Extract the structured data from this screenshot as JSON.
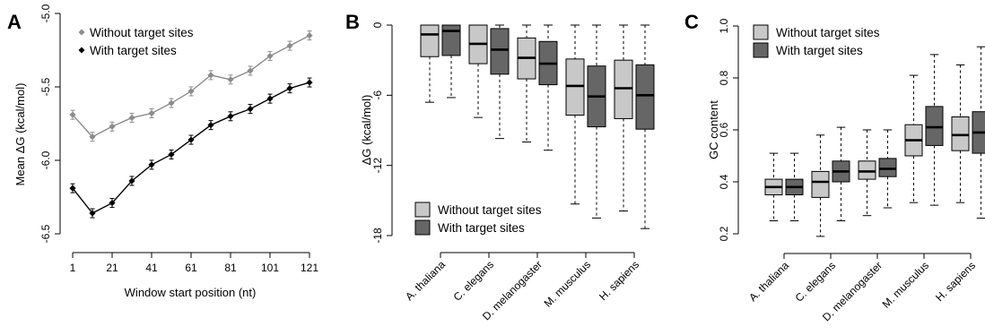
{
  "panels": {
    "a": {
      "letter": "A"
    },
    "b": {
      "letter": "B"
    },
    "c": {
      "letter": "C"
    }
  },
  "chart_data": [
    {
      "type": "line",
      "xlabel": "Window start position (nt)",
      "ylabel": "Mean ΔG (kcal/mol)",
      "xlim": [
        1,
        121
      ],
      "ylim": [
        -6.5,
        -5.0
      ],
      "x_ticks": [
        1,
        21,
        41,
        61,
        81,
        101,
        121
      ],
      "x_tick_labels": [
        "1",
        "21",
        "41",
        "61",
        "81",
        "101",
        "121"
      ],
      "y_ticks": [
        -6.5,
        -6.0,
        -5.5,
        -5.0
      ],
      "y_tick_labels": [
        "-6.5",
        "-6.0",
        "-5.5",
        "-5.0"
      ],
      "legend_position": "top-left",
      "error_bars": true,
      "x": [
        1,
        11,
        21,
        31,
        41,
        51,
        61,
        71,
        81,
        91,
        101,
        111,
        121
      ],
      "series": [
        {
          "name": "Without target sites",
          "color": "#8c8c8c",
          "values": [
            -5.69,
            -5.84,
            -5.77,
            -5.71,
            -5.68,
            -5.61,
            -5.53,
            -5.42,
            -5.45,
            -5.39,
            -5.29,
            -5.22,
            -5.15
          ]
        },
        {
          "name": "With target sites",
          "color": "#000000",
          "values": [
            -6.19,
            -6.36,
            -6.29,
            -6.14,
            -6.03,
            -5.96,
            -5.86,
            -5.76,
            -5.7,
            -5.65,
            -5.58,
            -5.51,
            -5.47
          ]
        }
      ]
    },
    {
      "type": "boxplot",
      "ylabel": "ΔG (kcal/mol)",
      "ylim": [
        -18,
        0
      ],
      "y_ticks": [
        0,
        -6,
        -12,
        -18
      ],
      "y_tick_labels": [
        "0",
        "-6",
        "-12",
        "-18"
      ],
      "categories": [
        "A. thaliana",
        "C. elegans",
        "D. melanogaster",
        "M. musculus",
        "H. sapiens"
      ],
      "legend_position": "bottom-left",
      "series": [
        {
          "name": "Without target sites",
          "color": "#c8c8c8",
          "boxes": [
            {
              "min": -6.6,
              "q1": -2.7,
              "median": -0.8,
              "q3": 0,
              "max": 0
            },
            {
              "min": -7.9,
              "q1": -3.3,
              "median": -1.6,
              "q3": 0,
              "max": 0
            },
            {
              "min": -10.0,
              "q1": -4.6,
              "median": -2.8,
              "q3": -1.1,
              "max": 0
            },
            {
              "min": -15.3,
              "q1": -7.7,
              "median": -5.2,
              "q3": -2.9,
              "max": 0
            },
            {
              "min": -15.9,
              "q1": -8.0,
              "median": -5.4,
              "q3": -3.0,
              "max": 0
            }
          ]
        },
        {
          "name": "With target sites",
          "color": "#666666",
          "boxes": [
            {
              "min": -6.2,
              "q1": -2.6,
              "median": -0.5,
              "q3": 0,
              "max": 0
            },
            {
              "min": -9.7,
              "q1": -4.2,
              "median": -2.1,
              "q3": -0.3,
              "max": 0
            },
            {
              "min": -10.7,
              "q1": -5.1,
              "median": -3.3,
              "q3": -1.4,
              "max": 0
            },
            {
              "min": -16.5,
              "q1": -8.7,
              "median": -6.1,
              "q3": -3.5,
              "max": 0
            },
            {
              "min": -17.4,
              "q1": -8.9,
              "median": -6.0,
              "q3": -3.4,
              "max": 0
            }
          ]
        }
      ]
    },
    {
      "type": "boxplot",
      "ylabel": "GC content",
      "ylim": [
        0.2,
        1.0
      ],
      "y_ticks": [
        0.2,
        0.4,
        0.6,
        0.8,
        1.0
      ],
      "y_tick_labels": [
        "0.2",
        "0.4",
        "0.6",
        "0.8",
        "1.0"
      ],
      "categories": [
        "A. thaliana",
        "C. elegans",
        "D. melanogaster",
        "M. musculus",
        "H. sapiens"
      ],
      "legend_position": "top-left",
      "series": [
        {
          "name": "Without target sites",
          "color": "#c8c8c8",
          "boxes": [
            {
              "min": 0.25,
              "q1": 0.35,
              "median": 0.38,
              "q3": 0.41,
              "max": 0.51
            },
            {
              "min": 0.19,
              "q1": 0.34,
              "median": 0.4,
              "q3": 0.44,
              "max": 0.58
            },
            {
              "min": 0.27,
              "q1": 0.41,
              "median": 0.44,
              "q3": 0.48,
              "max": 0.6
            },
            {
              "min": 0.32,
              "q1": 0.5,
              "median": 0.56,
              "q3": 0.62,
              "max": 0.81
            },
            {
              "min": 0.32,
              "q1": 0.52,
              "median": 0.58,
              "q3": 0.65,
              "max": 0.85
            }
          ]
        },
        {
          "name": "With target sites",
          "color": "#666666",
          "boxes": [
            {
              "min": 0.25,
              "q1": 0.35,
              "median": 0.38,
              "q3": 0.41,
              "max": 0.51
            },
            {
              "min": 0.25,
              "q1": 0.4,
              "median": 0.44,
              "q3": 0.48,
              "max": 0.61
            },
            {
              "min": 0.3,
              "q1": 0.42,
              "median": 0.45,
              "q3": 0.49,
              "max": 0.6
            },
            {
              "min": 0.31,
              "q1": 0.54,
              "median": 0.61,
              "q3": 0.69,
              "max": 0.89
            },
            {
              "min": 0.26,
              "q1": 0.51,
              "median": 0.59,
              "q3": 0.67,
              "max": 0.92
            }
          ]
        }
      ]
    }
  ]
}
